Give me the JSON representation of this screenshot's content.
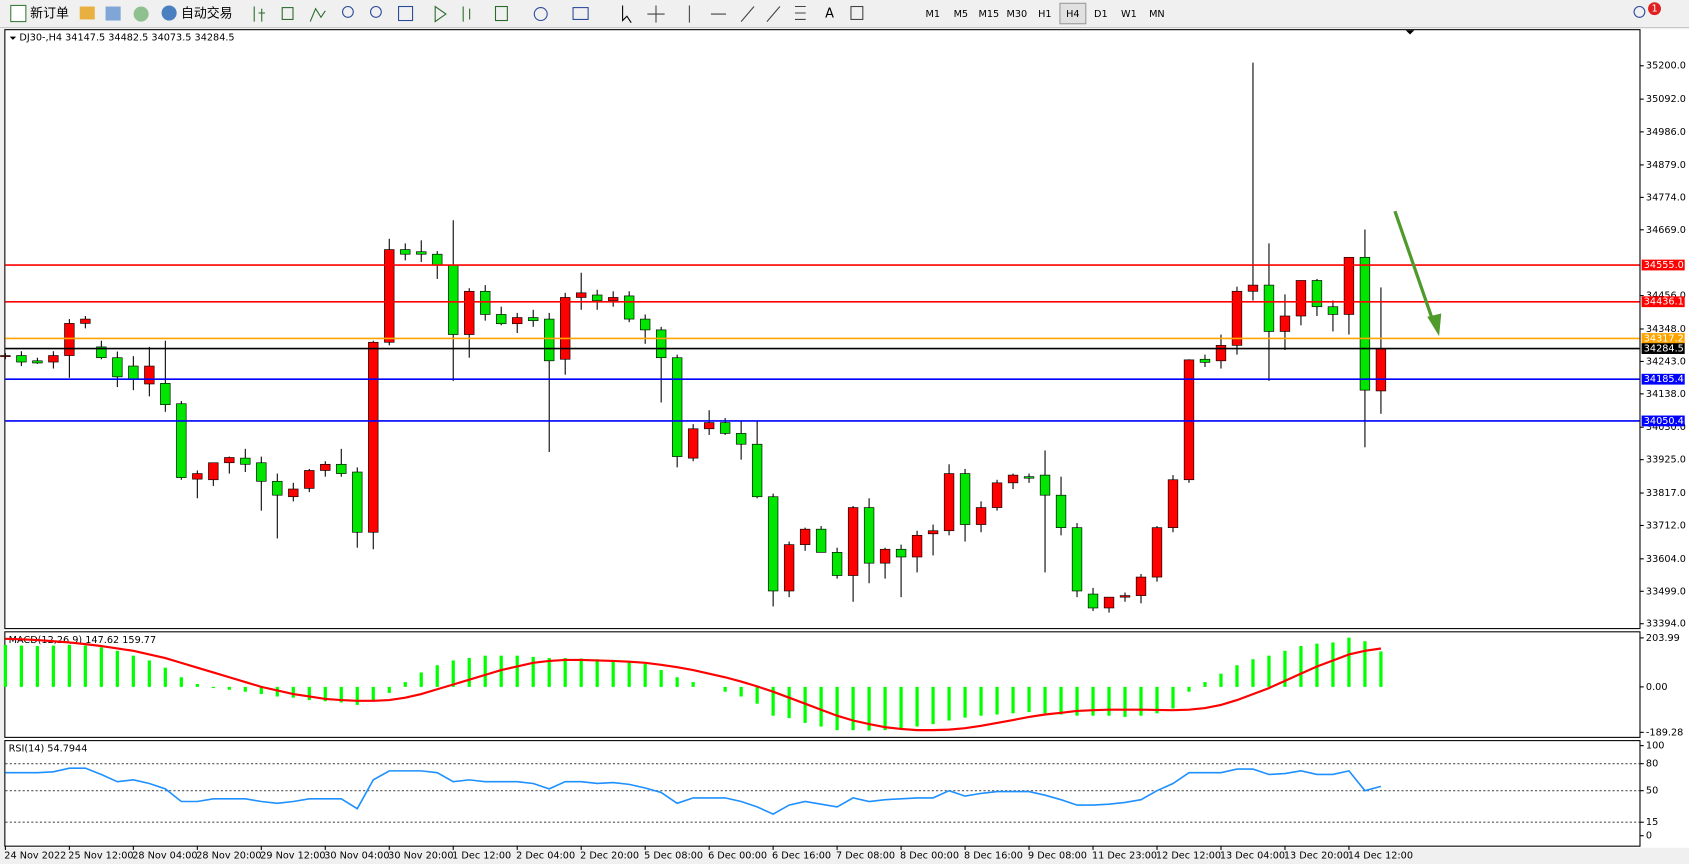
{
  "toolbar": {
    "new_order": "新订单",
    "auto_trading": "自动交易",
    "timeframes": [
      "M1",
      "M5",
      "M15",
      "M30",
      "H1",
      "H4",
      "D1",
      "W1",
      "MN"
    ],
    "active_timeframe": "H4",
    "notification_count": "1"
  },
  "chart_data": [
    {
      "type": "candlestick",
      "title": "DJ30-,H4  34147.5 34482.5 34073.5 34284.5",
      "up_color": "#ff0000",
      "down_color": "#00e600",
      "categories": [
        "24 Nov 2022",
        null,
        null,
        null,
        "25 Nov 12:00",
        null,
        null,
        null,
        "28 Nov 04:00",
        null,
        null,
        null,
        "28 Nov 20:00",
        null,
        null,
        null,
        "29 Nov 12:00",
        null,
        null,
        null,
        "30 Nov 04:00",
        null,
        null,
        null,
        "30 Nov 20:00",
        null,
        null,
        null,
        "1 Dec 12:00",
        null,
        null,
        null,
        "2 Dec 04:00",
        null,
        null,
        null,
        "2 Dec 20:00",
        null,
        null,
        null,
        "5 Dec 08:00",
        null,
        null,
        null,
        "6 Dec 00:00",
        null,
        null,
        null,
        "6 Dec 16:00",
        null,
        null,
        null,
        "7 Dec 08:00",
        null,
        null,
        null,
        "8 Dec 00:00",
        null,
        null,
        null,
        "8 Dec 16:00",
        null,
        null,
        null,
        "9 Dec 08:00",
        null,
        null,
        null,
        "11 Dec 23:00",
        null,
        null,
        null,
        "12 Dec 12:00",
        null,
        null,
        null,
        "13 Dec 04:00",
        null,
        null,
        null,
        "13 Dec 20:00",
        null,
        null,
        null,
        "14 Dec 12:00",
        null,
        null
      ],
      "open": [
        34260,
        34262,
        34245,
        34241,
        34262,
        34366,
        34290,
        34255,
        34228,
        34170,
        34172,
        34106,
        33862,
        33860,
        33915,
        33930,
        33915,
        33855,
        33805,
        33832,
        33890,
        33910,
        33885,
        33690,
        34305,
        34605,
        34598,
        34590,
        34555,
        34330,
        34470,
        34395,
        34365,
        34385,
        34380,
        34250,
        34450,
        34458,
        34440,
        34455,
        34380,
        34345,
        34255,
        33930,
        34025,
        34045,
        34010,
        33975,
        33805,
        33500,
        33650,
        33700,
        33625,
        33550,
        33770,
        33590,
        33635,
        33610,
        33685,
        33695,
        33880,
        33715,
        33770,
        33850,
        33870,
        33875,
        33810,
        33705,
        33490,
        33445,
        33480,
        33485,
        33545,
        33705,
        33860,
        34250,
        34245,
        34295,
        34470,
        34490,
        34340,
        34390,
        34505,
        34420,
        34395,
        34580,
        34147.5
      ],
      "high": [
        34270,
        34276,
        34255,
        34276,
        34380,
        34390,
        34310,
        34275,
        34260,
        34290,
        34310,
        34115,
        33890,
        33915,
        33935,
        33960,
        33935,
        33880,
        33850,
        33895,
        33920,
        33960,
        33900,
        34310,
        34640,
        34625,
        34635,
        34600,
        34700,
        34480,
        34490,
        34420,
        34400,
        34410,
        34400,
        34465,
        34530,
        34475,
        34470,
        34470,
        34395,
        34355,
        34265,
        34040,
        34085,
        34060,
        34050,
        34050,
        33815,
        33660,
        33705,
        33710,
        33640,
        33775,
        33800,
        33640,
        33650,
        33695,
        33715,
        33910,
        33895,
        33790,
        33860,
        33880,
        33880,
        33955,
        33870,
        33720,
        33510,
        33480,
        33495,
        33555,
        33710,
        33875,
        34250,
        34265,
        34330,
        34485,
        35210,
        34625,
        34460,
        34505,
        34510,
        34440,
        34580,
        34670,
        34482.5
      ],
      "low": [
        34250,
        34228,
        34235,
        34220,
        34190,
        34350,
        34250,
        34160,
        34150,
        34130,
        34080,
        33860,
        33800,
        33840,
        33880,
        33885,
        33760,
        33670,
        33790,
        33820,
        33870,
        33870,
        33640,
        33635,
        34295,
        34570,
        34565,
        34510,
        34180,
        34255,
        34375,
        34360,
        34335,
        34355,
        33950,
        34200,
        34410,
        34410,
        34420,
        34370,
        34300,
        34110,
        33900,
        33920,
        34005,
        34005,
        33925,
        33800,
        33450,
        33480,
        33630,
        33625,
        33540,
        33465,
        33525,
        33540,
        33480,
        33560,
        33615,
        33680,
        33660,
        33690,
        33760,
        33830,
        33850,
        33560,
        33680,
        33480,
        33435,
        33430,
        33465,
        33460,
        33530,
        33690,
        33850,
        34225,
        34220,
        34265,
        34440,
        34180,
        34280,
        34360,
        34390,
        34340,
        34330,
        33965,
        34073.5
      ],
      "close": [
        34262,
        34241,
        34238,
        34262,
        34366,
        34380,
        34255,
        34193,
        34186,
        34228,
        34103,
        33867,
        33880,
        33915,
        33932,
        33910,
        33855,
        33810,
        33830,
        33890,
        33910,
        33880,
        33690,
        34305,
        34605,
        34590,
        34590,
        34555,
        34330,
        34470,
        34395,
        34365,
        34385,
        34375,
        34245,
        34450,
        34465,
        34440,
        34450,
        34380,
        34345,
        34255,
        33935,
        34025,
        34045,
        34010,
        33975,
        33805,
        33500,
        33650,
        33700,
        33625,
        33550,
        33770,
        33590,
        33635,
        33610,
        33680,
        33695,
        33880,
        33715,
        33770,
        33850,
        33875,
        33865,
        33810,
        33705,
        33500,
        33445,
        33480,
        33485,
        33545,
        33705,
        33860,
        34248,
        34240,
        34295,
        34470,
        34490,
        34340,
        34390,
        34505,
        34420,
        34395,
        34580,
        34150,
        34284.5
      ],
      "ylim": [
        33380,
        35315
      ],
      "yticks": [
        {
          "value": 35200,
          "label": "35200.0"
        },
        {
          "value": 35092,
          "label": "35092.0"
        },
        {
          "value": 34986,
          "label": "34986.0"
        },
        {
          "value": 34879,
          "label": "34879.0"
        },
        {
          "value": 34774,
          "label": "34774.0"
        },
        {
          "value": 34669,
          "label": "34669.0"
        },
        {
          "value": 34456,
          "label": "34456.0"
        },
        {
          "value": 34348,
          "label": "34348.0"
        },
        {
          "value": 34243,
          "label": "34243.0"
        },
        {
          "value": 34138,
          "label": "34138.0"
        },
        {
          "value": 34030,
          "label": "34030.0"
        },
        {
          "value": 33925,
          "label": "33925.0"
        },
        {
          "value": 33817,
          "label": "33817.0"
        },
        {
          "value": 33712,
          "label": "33712.0"
        },
        {
          "value": 33604,
          "label": "33604.0"
        },
        {
          "value": 33499,
          "label": "33499.0"
        },
        {
          "value": 33394,
          "label": "33394.0"
        }
      ],
      "levels": [
        {
          "value": 34555,
          "label": "34555.0",
          "color": "#ff0000"
        },
        {
          "value": 34436.1,
          "label": "34436.1",
          "color": "#ff0000"
        },
        {
          "value": 34317.2,
          "label": "34317.2",
          "color": "#ffa500"
        },
        {
          "value": 34284.5,
          "label": "34284.5",
          "color": "#000000"
        },
        {
          "value": 34185.4,
          "label": "34185.4",
          "color": "#0000ff"
        },
        {
          "value": 34050.4,
          "label": "34050.4",
          "color": "#0000ff"
        }
      ]
    },
    {
      "type": "bar",
      "title": "MACD(12,26,9) 147.62 159.77",
      "ylim": [
        -208,
        227
      ],
      "yticks": [
        203.99,
        {
          "value": 0,
          "label": "0.00"
        },
        -189.28
      ],
      "series": [
        {
          "color": "#00ff00",
          "values": [
            175,
            172,
            170,
            172,
            175,
            172,
            165,
            150,
            130,
            110,
            80,
            40,
            12,
            -5,
            -12,
            -20,
            -30,
            -40,
            -45,
            -55,
            -60,
            -65,
            -75,
            -55,
            -25,
            20,
            60,
            90,
            110,
            120,
            130,
            130,
            130,
            125,
            120,
            120,
            118,
            115,
            110,
            105,
            95,
            70,
            40,
            20,
            0,
            -20,
            -40,
            -70,
            -120,
            -130,
            -150,
            -165,
            -180,
            -180,
            -182,
            -180,
            -175,
            -165,
            -155,
            -140,
            -128,
            -120,
            -115,
            -110,
            -105,
            -110,
            -115,
            -120,
            -120,
            -120,
            -125,
            -120,
            -110,
            -90,
            -20,
            20,
            55,
            90,
            115,
            130,
            150,
            170,
            180,
            185,
            205,
            190,
            147.62
          ]
        },
        {
          "type": "line",
          "color": "#ff0000",
          "values": [
            200,
            198,
            195,
            190,
            185,
            178,
            170,
            160,
            150,
            135,
            120,
            100,
            80,
            60,
            40,
            20,
            0,
            -15,
            -30,
            -40,
            -50,
            -55,
            -58,
            -58,
            -55,
            -45,
            -30,
            -10,
            10,
            30,
            50,
            70,
            85,
            100,
            108,
            112,
            112,
            110,
            108,
            105,
            100,
            92,
            82,
            70,
            55,
            40,
            22,
            2,
            -20,
            -45,
            -70,
            -95,
            -120,
            -140,
            -155,
            -168,
            -175,
            -180,
            -180,
            -178,
            -172,
            -162,
            -150,
            -138,
            -125,
            -115,
            -108,
            -100,
            -97,
            -95,
            -95,
            -95,
            -96,
            -97,
            -95,
            -88,
            -75,
            -55,
            -30,
            -5,
            25,
            55,
            85,
            110,
            135,
            150,
            159.77
          ]
        }
      ]
    },
    {
      "type": "line",
      "title": "RSI(14) 54.7944",
      "color": "#1e90ff",
      "ylim": [
        -11,
        105
      ],
      "yticks": [
        100,
        80,
        50,
        15,
        0
      ],
      "levels": [
        80,
        50,
        15
      ],
      "values": [
        70,
        70,
        70,
        71,
        75,
        75,
        68,
        60,
        62,
        58,
        52,
        38,
        38,
        41,
        41,
        41,
        38,
        36,
        38,
        41,
        41,
        41,
        30,
        62,
        72,
        72,
        72,
        70,
        60,
        62,
        60,
        60,
        60,
        58,
        52,
        60,
        60,
        58,
        59,
        57,
        53,
        48,
        36,
        42,
        42,
        42,
        38,
        32,
        24,
        34,
        38,
        35,
        32,
        42,
        38,
        40,
        41,
        42,
        42,
        50,
        44,
        47,
        49,
        49,
        49,
        45,
        40,
        34,
        34,
        35,
        37,
        40,
        50,
        58,
        70,
        70,
        70,
        74,
        74,
        68,
        69,
        72,
        68,
        68,
        72,
        50,
        54.79
      ]
    }
  ]
}
